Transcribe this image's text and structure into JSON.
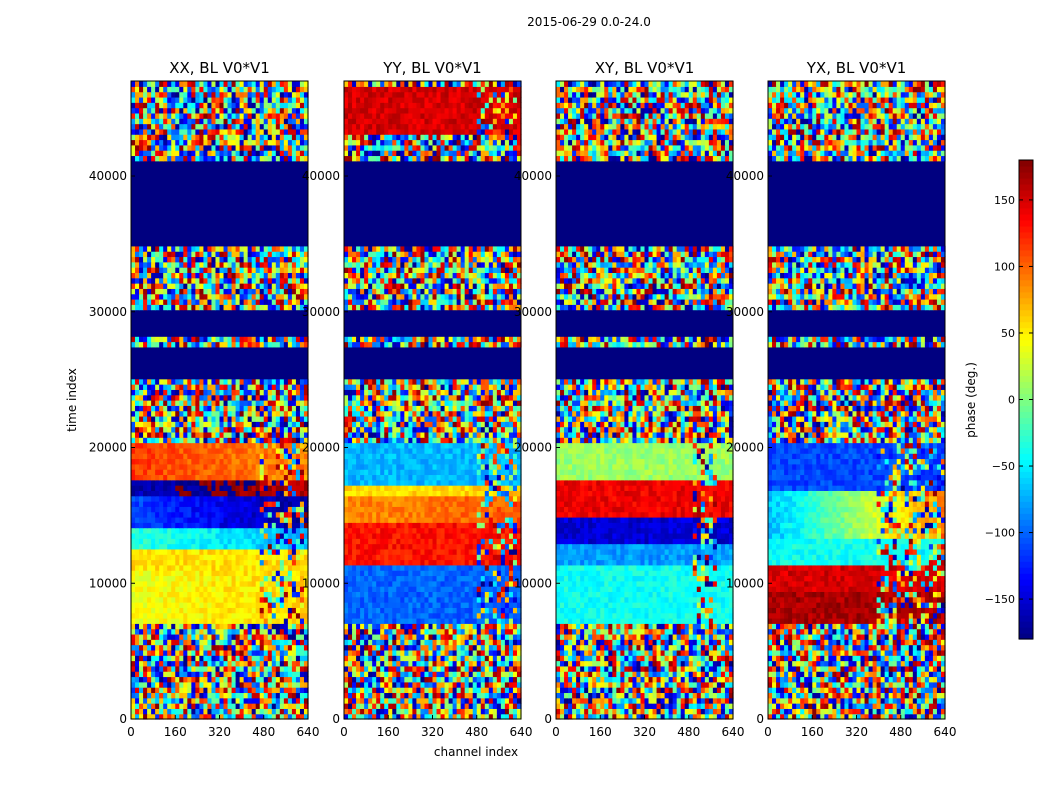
{
  "figure": {
    "suptitle": "2015-06-29 0.0-24.0",
    "xlabel": "channel index",
    "ylabel": "time index"
  },
  "chart_data": {
    "type": "heatmap",
    "title": "2015-06-29 0.0-24.0",
    "xlabel": "channel index",
    "ylabel": "time index",
    "xlim": [
      0,
      640
    ],
    "ylim": [
      0,
      47000
    ],
    "x_ticks": [
      0,
      160,
      320,
      480,
      640
    ],
    "y_ticks": [
      0,
      10000,
      20000,
      30000,
      40000
    ],
    "grid": false,
    "colormap": "jet",
    "colorbar": {
      "label": "phase (deg.)",
      "range": [
        -180,
        180
      ],
      "ticks": [
        150,
        100,
        50,
        0,
        -50,
        -100,
        -150
      ],
      "tick_labels": [
        "150",
        "100",
        "50",
        "0",
        "−50",
        "−100",
        "−150"
      ],
      "placement": "right"
    },
    "panels": [
      {
        "title": "XX, BL V0*V1",
        "flagged_rows": [
          [
            25000,
            27500
          ],
          [
            28200,
            30200
          ],
          [
            35000,
            41200
          ]
        ],
        "bands": [
          {
            "t0": 7200,
            "t1": 11000,
            "phase": 40,
            "slope": 5
          },
          {
            "t0": 11000,
            "t1": 12500,
            "phase": 55,
            "slope": 0
          },
          {
            "t0": 12500,
            "t1": 14000,
            "phase": -30,
            "slope": -10
          },
          {
            "t0": 14000,
            "t1": 16500,
            "phase": -110,
            "slope": -15
          },
          {
            "t0": 16500,
            "t1": 17800,
            "phase": -160,
            "slope": -10
          },
          {
            "t0": 17800,
            "t1": 20500,
            "phase": 115,
            "slope": -8
          }
        ],
        "noise_cols": [
          460,
          620
        ]
      },
      {
        "title": "YY, BL V0*V1",
        "flagged_rows": [
          [
            25000,
            27500
          ],
          [
            28200,
            30200
          ],
          [
            35000,
            41200
          ]
        ],
        "bands": [
          {
            "t0": 7200,
            "t1": 11500,
            "phase": -100,
            "slope": 0
          },
          {
            "t0": 11500,
            "t1": 14500,
            "phase": 130,
            "slope": 0
          },
          {
            "t0": 14500,
            "t1": 16500,
            "phase": 85,
            "slope": 5
          },
          {
            "t0": 16500,
            "t1": 17300,
            "phase": 60,
            "slope": 0
          },
          {
            "t0": 17300,
            "t1": 20500,
            "phase": -70,
            "slope": 0
          },
          {
            "t0": 43000,
            "t1": 46500,
            "phase": 150,
            "slope": 0
          }
        ],
        "noise_cols": [
          480,
          620
        ]
      },
      {
        "title": "XY, BL V0*V1",
        "flagged_rows": [
          [
            25000,
            27500
          ],
          [
            28200,
            30200
          ],
          [
            35000,
            41200
          ]
        ],
        "bands": [
          {
            "t0": 7200,
            "t1": 11500,
            "phase": -40,
            "slope": 0
          },
          {
            "t0": 11500,
            "t1": 13000,
            "phase": -80,
            "slope": 0
          },
          {
            "t0": 13000,
            "t1": 15000,
            "phase": -150,
            "slope": 0
          },
          {
            "t0": 15000,
            "t1": 17500,
            "phase": 140,
            "slope": 0
          },
          {
            "t0": 17500,
            "t1": 20500,
            "phase": 10,
            "slope": 0
          }
        ],
        "noise_cols": [
          500,
          580
        ]
      },
      {
        "title": "YX, BL V0*V1",
        "flagged_rows": [
          [
            25000,
            27500
          ],
          [
            28200,
            30200
          ],
          [
            35000,
            41200
          ]
        ],
        "bands": [
          {
            "t0": 7200,
            "t1": 9500,
            "phase": 165,
            "slope": 0
          },
          {
            "t0": 9500,
            "t1": 11500,
            "phase": 150,
            "slope": 0
          },
          {
            "t0": 11500,
            "t1": 13500,
            "phase": -40,
            "slope": 0
          },
          {
            "t0": 13500,
            "t1": 17000,
            "phase": -70,
            "slope": 40
          },
          {
            "t0": 17000,
            "t1": 20500,
            "phase": -110,
            "slope": 0
          }
        ],
        "noise_cols": [
          400,
          640
        ]
      }
    ]
  }
}
